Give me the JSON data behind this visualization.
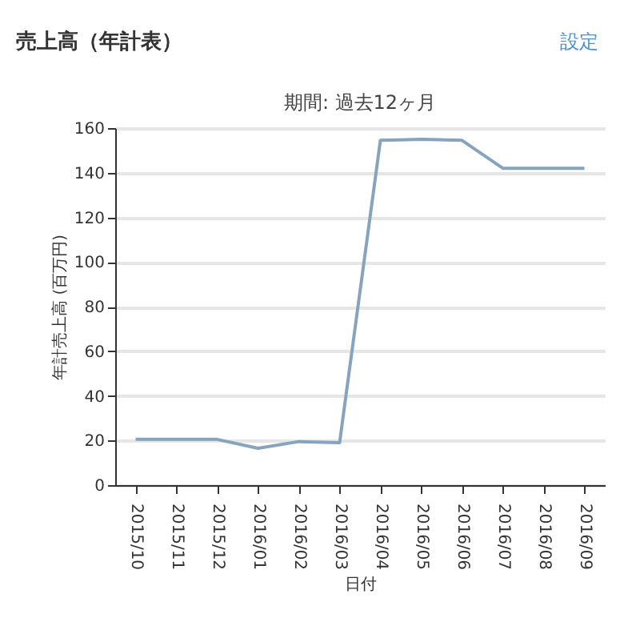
{
  "chart_data": {
    "type": "line",
    "title": "売上高（年計表）",
    "subtitle": "期間: 過去12ヶ月",
    "xlabel": "日付",
    "ylabel": "年計売上高 (百万円)",
    "annotations": [
      "設定"
    ],
    "categories": [
      "2015/10",
      "2015/11",
      "2015/12",
      "2016/01",
      "2016/02",
      "2016/03",
      "2016/04",
      "2016/05",
      "2016/06",
      "2016/07",
      "2016/08",
      "2016/09"
    ],
    "series": [
      {
        "color": "#86a4bd",
        "values": [
          20.5,
          20.5,
          20.5,
          16.5,
          19.5,
          19,
          154.5,
          155,
          154.5,
          142,
          142,
          142
        ]
      }
    ],
    "ylim": [
      0,
      160
    ],
    "yticks": [
      0,
      20,
      40,
      60,
      80,
      100,
      120,
      140,
      160
    ],
    "grid": "y",
    "marker": "none",
    "line_style": "solid"
  }
}
